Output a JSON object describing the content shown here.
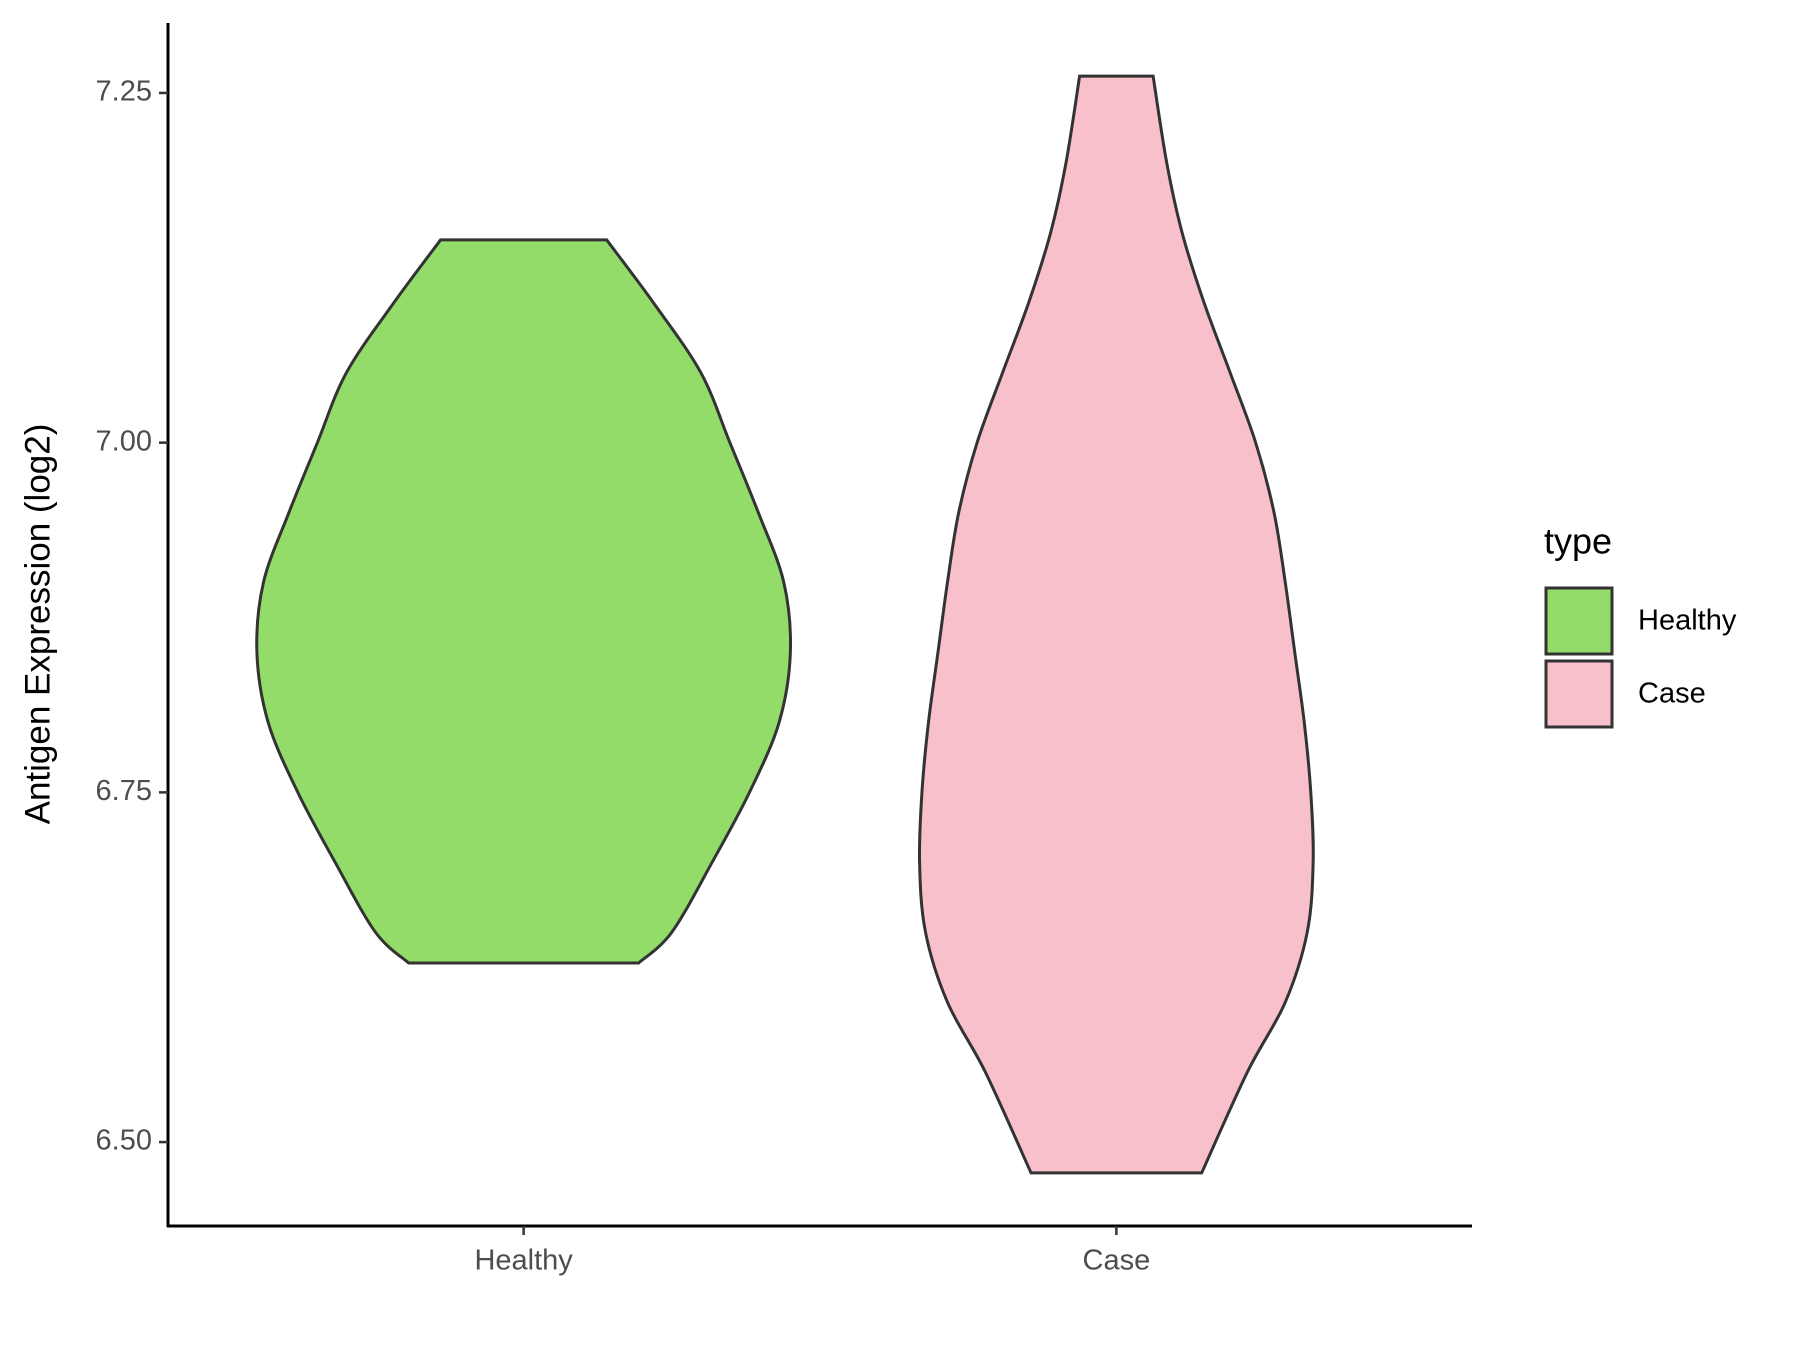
{
  "chart_data": {
    "type": "violin",
    "y_label": "Antigen Expression (log2)",
    "categories": [
      "Healthy",
      "Case"
    ],
    "legend_title": "type",
    "ylim": [
      6.44,
      7.3
    ],
    "yticks": [
      {
        "value": 6.5,
        "label": "6.50"
      },
      6.75,
      {
        "value": 7,
        "label": "7.00"
      },
      7.25
    ],
    "series": [
      {
        "name": "Healthy",
        "color": "#93dc6a",
        "y": [
          7.145,
          7.1,
          7.05,
          7.0,
          6.95,
          6.9,
          6.85,
          6.8,
          6.75,
          6.7,
          6.65,
          6.628
        ],
        "half_width": [
          0.14,
          0.219,
          0.299,
          0.348,
          0.396,
          0.439,
          0.45,
          0.431,
          0.381,
          0.318,
          0.25,
          0.194
        ]
      },
      {
        "name": "Case",
        "color": "#f7c0cb",
        "y": [
          7.262,
          7.2,
          7.15,
          7.1,
          7.05,
          7.0,
          6.95,
          6.9,
          6.85,
          6.8,
          6.75,
          6.7,
          6.65,
          6.6,
          6.55,
          6.478
        ],
        "half_width": [
          0.062,
          0.085,
          0.111,
          0.148,
          0.192,
          0.235,
          0.266,
          0.285,
          0.301,
          0.317,
          0.328,
          0.332,
          0.322,
          0.285,
          0.221,
          0.144
        ]
      }
    ]
  }
}
